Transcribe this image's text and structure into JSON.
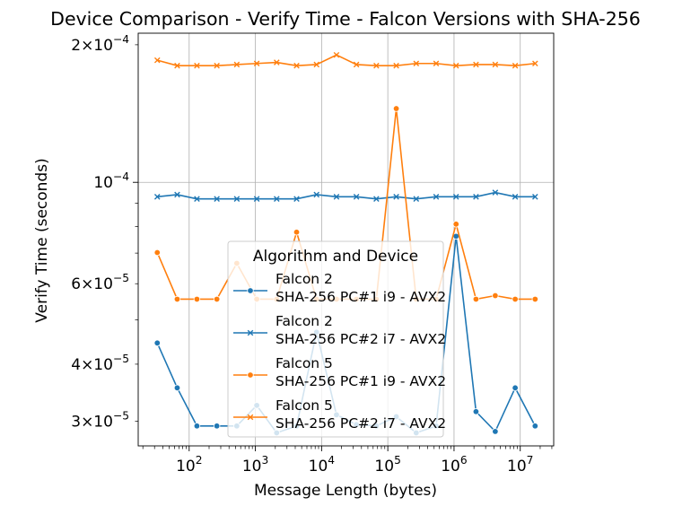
{
  "chart_data": {
    "type": "line",
    "title": "Device Comparison - Verify Time - Falcon Versions with SHA-256",
    "xlabel": "Message Length (bytes)",
    "ylabel": "Verify Time (seconds)",
    "x_scale": "log",
    "y_scale": "log",
    "xlim": [
      17,
      32000000
    ],
    "ylim": [
      2.65e-05,
      0.000212
    ],
    "grid": true,
    "x_major_ticks": [
      {
        "value": 100,
        "base": "10",
        "exp": "2"
      },
      {
        "value": 1000,
        "base": "10",
        "exp": "3"
      },
      {
        "value": 10000,
        "base": "10",
        "exp": "4"
      },
      {
        "value": 100000,
        "base": "10",
        "exp": "5"
      },
      {
        "value": 1000000,
        "base": "10",
        "exp": "6"
      },
      {
        "value": 10000000,
        "base": "10",
        "exp": "7"
      }
    ],
    "y_major_ticks": [
      {
        "value": 0.0001,
        "base": "10",
        "exp": "−4"
      }
    ],
    "y_minor_ticks": [
      {
        "value": 3e-05,
        "mant": "3",
        "base": "10",
        "exp": "−5"
      },
      {
        "value": 4e-05,
        "mant": "4",
        "base": "10",
        "exp": "−5"
      },
      {
        "value": 5e-05
      },
      {
        "value": 6e-05,
        "mant": "6",
        "base": "10",
        "exp": "−5"
      },
      {
        "value": 7e-05
      },
      {
        "value": 8e-05
      },
      {
        "value": 9e-05
      },
      {
        "value": 0.0002,
        "mant": "2",
        "base": "10",
        "exp": "−4"
      }
    ],
    "legend": {
      "title": "Algorithm and Device",
      "placement": "lower-center"
    },
    "x": [
      33,
      66,
      131,
      262,
      524,
      1049,
      2097,
      4194,
      8389,
      16777,
      33554,
      67109,
      134218,
      268435,
      536871,
      1073742,
      2147484,
      4194304,
      8388608,
      16777216
    ],
    "series": [
      {
        "name": "Falcon 2\nSHA-256 PC#1 i9 - AVX2",
        "color": "#1f77b4",
        "marker": "circle",
        "values": [
          4.45e-05,
          3.55e-05,
          2.93e-05,
          2.93e-05,
          2.93e-05,
          3.25e-05,
          2.83e-05,
          2.93e-05,
          4.7e-05,
          3.1e-05,
          2.95e-05,
          2.93e-05,
          3.07e-05,
          2.83e-05,
          2.93e-05,
          7.62e-05,
          3.15e-05,
          2.85e-05,
          3.55e-05,
          2.93e-05
        ]
      },
      {
        "name": "Falcon 2\nSHA-256 PC#2 i7 - AVX2",
        "color": "#1f77b4",
        "marker": "x",
        "values": [
          9.3e-05,
          9.4e-05,
          9.2e-05,
          9.2e-05,
          9.2e-05,
          9.2e-05,
          9.2e-05,
          9.2e-05,
          9.4e-05,
          9.3e-05,
          9.3e-05,
          9.2e-05,
          9.3e-05,
          9.2e-05,
          9.3e-05,
          9.3e-05,
          9.3e-05,
          9.5e-05,
          9.3e-05,
          9.3e-05
        ]
      },
      {
        "name": "Falcon 5\nSHA-256 PC#1 i9 - AVX2",
        "color": "#ff7f0e",
        "marker": "circle",
        "values": [
          7.02e-05,
          5.55e-05,
          5.55e-05,
          5.55e-05,
          6.65e-05,
          5.55e-05,
          5.55e-05,
          7.78e-05,
          5.55e-05,
          5.55e-05,
          5.55e-05,
          5.55e-05,
          0.000145,
          5.55e-05,
          5.55e-05,
          8.1e-05,
          5.55e-05,
          5.65e-05,
          5.55e-05,
          5.55e-05
        ]
      },
      {
        "name": "Falcon 5\nSHA-256 PC#2 i7 - AVX2",
        "color": "#ff7f0e",
        "marker": "x",
        "values": [
          0.000185,
          0.00018,
          0.00018,
          0.00018,
          0.000181,
          0.000182,
          0.000183,
          0.00018,
          0.000181,
          0.00019,
          0.000181,
          0.00018,
          0.00018,
          0.000182,
          0.000182,
          0.00018,
          0.000181,
          0.000181,
          0.00018,
          0.000182
        ]
      }
    ]
  }
}
